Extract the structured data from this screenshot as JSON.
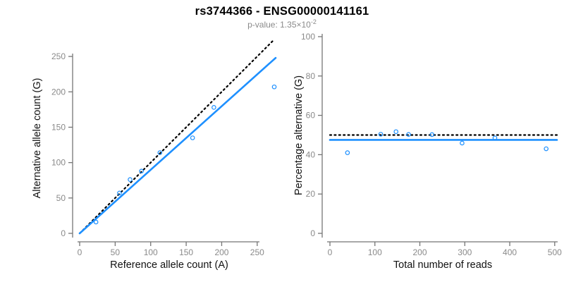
{
  "header": {
    "title": "rs3744366 - ENSG00000141161",
    "subtitle_main": "p-value: 1.35×10",
    "subtitle_exp": "-2"
  },
  "colors": {
    "line_blue": "#1E90FF",
    "dotted_black": "#000000",
    "axis": "#757575",
    "tick_label": "#8a8a8a",
    "axis_label": "#111111",
    "title": "#000000",
    "subtitle": "#8a8a8a",
    "background": "#ffffff"
  },
  "chart_data": [
    {
      "type": "scatter",
      "name": "allele-counts",
      "xlabel": "Reference allele count (A)",
      "ylabel": "Alternative allele count (G)",
      "xlim": [
        0,
        275
      ],
      "ylim": [
        0,
        275
      ],
      "xticks": [
        0,
        50,
        100,
        150,
        200,
        250
      ],
      "yticks": [
        0,
        50,
        100,
        150,
        200,
        250
      ],
      "grid": false,
      "legend": "none",
      "marker": "open-circle",
      "points": [
        [
          23,
          16
        ],
        [
          56,
          57
        ],
        [
          71,
          76
        ],
        [
          87,
          88
        ],
        [
          113,
          114
        ],
        [
          159,
          135
        ],
        [
          189,
          178
        ],
        [
          274,
          207
        ]
      ],
      "lines": [
        {
          "name": "identity-line",
          "style": "dotted",
          "color_key": "dotted_black",
          "from": [
            0,
            0
          ],
          "to": [
            273,
            273
          ]
        },
        {
          "name": "regression-line",
          "style": "solid",
          "color_key": "line_blue",
          "from": [
            0,
            0
          ],
          "to": [
            276,
            248
          ]
        }
      ]
    },
    {
      "type": "scatter",
      "name": "percentage-alternative",
      "xlabel": "Total number of reads",
      "ylabel": "Percentage alternative (G)",
      "xlim": [
        0,
        505
      ],
      "ylim": [
        0,
        100
      ],
      "xticks": [
        0,
        100,
        200,
        300,
        400,
        500
      ],
      "yticks": [
        0,
        20,
        40,
        60,
        80,
        100
      ],
      "grid": false,
      "legend": "none",
      "marker": "open-circle",
      "points": [
        [
          39,
          41.0
        ],
        [
          113,
          50.4
        ],
        [
          147,
          51.7
        ],
        [
          175,
          50.3
        ],
        [
          227,
          50.2
        ],
        [
          294,
          45.9
        ],
        [
          367,
          48.5
        ],
        [
          481,
          43.0
        ]
      ],
      "lines": [
        {
          "name": "expected-line",
          "style": "dotted",
          "color_key": "dotted_black",
          "from": [
            0,
            50
          ],
          "to": [
            505,
            50
          ]
        },
        {
          "name": "fit-line",
          "style": "solid",
          "color_key": "line_blue",
          "from": [
            0,
            47.5
          ],
          "to": [
            505,
            47.5
          ]
        }
      ]
    }
  ]
}
